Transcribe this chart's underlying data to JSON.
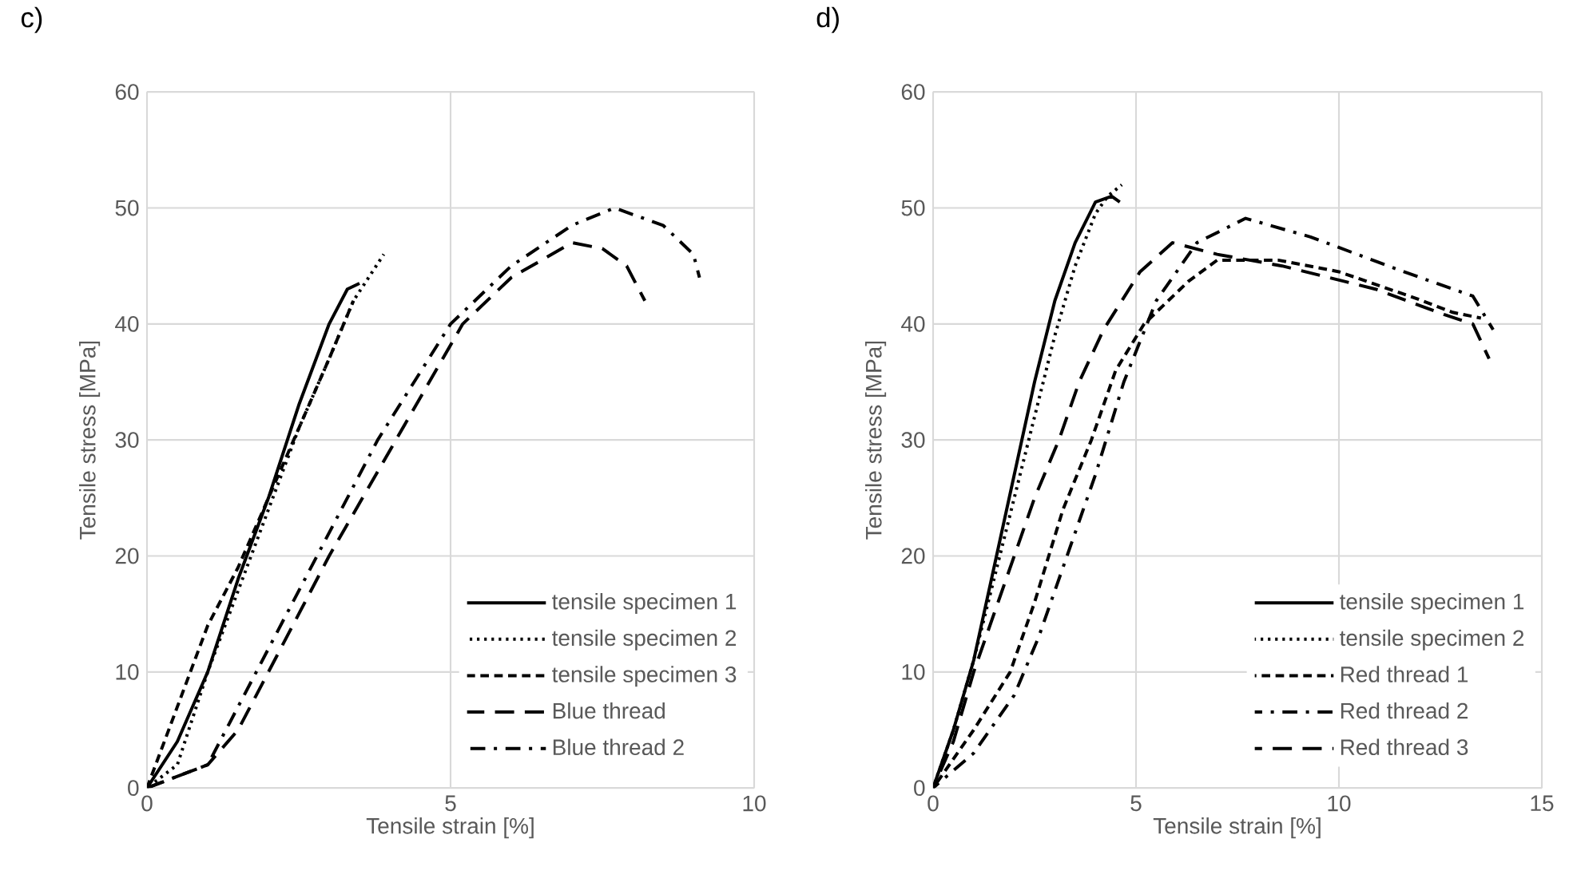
{
  "chart_data": [
    {
      "type": "line",
      "title": "c)",
      "xlabel": "Tensile strain [%]",
      "ylabel": "Tensile stress [MPa]",
      "xlim": [
        0,
        10
      ],
      "ylim": [
        0,
        60
      ],
      "xticks": [
        0,
        5,
        10
      ],
      "yticks": [
        0,
        10,
        20,
        30,
        40,
        50,
        60
      ],
      "grid": true,
      "legend": "bottom right",
      "marker": "none",
      "series": [
        {
          "name": "tensile specimen 1",
          "color": "#000000",
          "line_style": "solid",
          "x": [
            0,
            0.5,
            1,
            1.5,
            2,
            2.5,
            3,
            3.3,
            3.5
          ],
          "values": [
            0,
            4,
            10,
            18,
            25,
            33,
            40,
            43,
            43.5
          ]
        },
        {
          "name": "tensile specimen 2",
          "color": "#000000",
          "line_style": "dotted",
          "x": [
            0,
            0.5,
            1,
            1.5,
            2,
            2.5,
            3,
            3.4,
            3.9
          ],
          "values": [
            0,
            2,
            10,
            17,
            24,
            31,
            37,
            42,
            46
          ]
        },
        {
          "name": "tensile specimen 3",
          "color": "#000000",
          "line_style": "dashed",
          "x": [
            0,
            0.5,
            1,
            1.5,
            2,
            2.5,
            3,
            3.4
          ],
          "values": [
            0,
            7,
            14,
            19,
            25,
            31,
            37,
            42
          ]
        },
        {
          "name": "Blue thread",
          "color": "#000000",
          "line_style": "longdash",
          "x": [
            0,
            0.5,
            1,
            1.5,
            2,
            3,
            4.1,
            5.2,
            6,
            7,
            7.5,
            7.9,
            8.2
          ],
          "values": [
            0,
            1,
            2,
            5,
            10,
            20,
            30,
            40,
            44,
            47,
            46.5,
            45,
            42
          ]
        },
        {
          "name": "Blue thread 2",
          "color": "#000000",
          "line_style": "dashdot",
          "x": [
            0,
            0.5,
            1,
            1.3,
            1.8,
            2.8,
            3.8,
            5,
            6,
            7,
            7.7,
            8.5,
            9,
            9.1
          ],
          "values": [
            0,
            1,
            2,
            5,
            10,
            20,
            30,
            40,
            45,
            48.5,
            50,
            48.5,
            46,
            44
          ]
        }
      ]
    },
    {
      "type": "line",
      "title": "d)",
      "xlabel": "Tensile strain [%]",
      "ylabel": "Tensile stress [MPa]",
      "xlim": [
        0,
        15
      ],
      "ylim": [
        0,
        60
      ],
      "xticks": [
        0,
        5,
        10,
        15
      ],
      "yticks": [
        0,
        10,
        20,
        30,
        40,
        50,
        60
      ],
      "grid": true,
      "legend": "bottom right",
      "marker": "none",
      "series": [
        {
          "name": "tensile specimen 1",
          "color": "#000000",
          "line_style": "solid",
          "x": [
            0,
            0.5,
            1,
            1.5,
            2,
            2.5,
            3,
            3.5,
            4,
            4.4,
            4.6
          ],
          "values": [
            0,
            5,
            11,
            19,
            27,
            35,
            42,
            47,
            50.5,
            51,
            50.5
          ]
        },
        {
          "name": "tensile specimen 2",
          "color": "#000000",
          "line_style": "dotted",
          "x": [
            0,
            0.5,
            1,
            1.5,
            2,
            2.5,
            3,
            3.5,
            4,
            4.3,
            4.65
          ],
          "values": [
            0,
            5,
            11,
            18,
            25,
            32,
            39,
            45,
            49.5,
            51,
            52
          ]
        },
        {
          "name": "Red thread 1",
          "color": "#000000",
          "line_style": "dashed",
          "x": [
            0,
            1,
            1.9,
            2.5,
            3.2,
            3.9,
            4.5,
            5.2,
            6.3,
            7,
            8.5,
            10,
            11.9,
            12.8,
            13.5
          ],
          "values": [
            0,
            5,
            10,
            16,
            24,
            30,
            36,
            40,
            43.7,
            45.5,
            45.5,
            44.5,
            42.2,
            41,
            40.5
          ]
        },
        {
          "name": "Red thread 2",
          "color": "#000000",
          "line_style": "dashdot",
          "x": [
            0,
            1,
            2,
            2.6,
            3.3,
            4,
            4.7,
            5.5,
            6.5,
            7.7,
            9.3,
            11.6,
            13.3,
            13.8
          ],
          "values": [
            0,
            3,
            8,
            13,
            20,
            27,
            35,
            42,
            47,
            49.1,
            47.5,
            44.5,
            42.4,
            39.5
          ]
        },
        {
          "name": "Red thread 3",
          "color": "#000000",
          "line_style": "longdash",
          "x": [
            0,
            0.5,
            1,
            1.5,
            2,
            2.5,
            3.1,
            3.6,
            4.2,
            5.1,
            5.9,
            7,
            8.6,
            10.9,
            12.6,
            13.3,
            13.7
          ],
          "values": [
            0,
            4,
            10,
            15,
            20,
            25,
            30,
            35,
            39.5,
            44.5,
            47,
            46,
            45,
            43,
            40.8,
            40,
            37
          ]
        }
      ]
    }
  ]
}
